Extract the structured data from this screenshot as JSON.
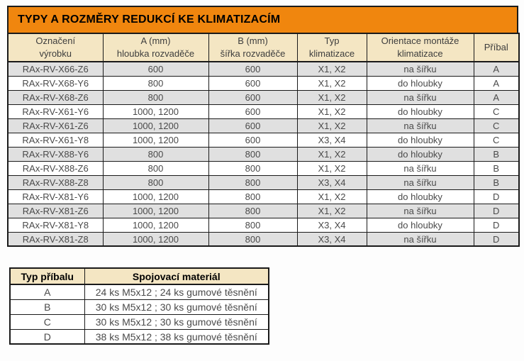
{
  "title": "TYPY A ROZMĚRY REDUKCÍ KE KLIMATIZACÍM",
  "colors": {
    "title_bg": "#F0860E",
    "title_text": "#000000",
    "header_bg": "#F4E6C3",
    "header_text": "#3D3D3D",
    "body_text": "#4A4A4A",
    "row_bg": "#FFFFFF",
    "row_alt_bg": "#E0E0E0",
    "border": "#1A1A1A"
  },
  "main_table": {
    "columns": [
      {
        "lines": [
          "Označení",
          "výrobku"
        ]
      },
      {
        "lines": [
          "A (mm)",
          "hloubka rozvaděče"
        ]
      },
      {
        "lines": [
          "B (mm)",
          "šířka rozvaděče"
        ]
      },
      {
        "lines": [
          "Typ",
          "klimatizace"
        ]
      },
      {
        "lines": [
          "Orientace montáže",
          "klimatizace"
        ]
      },
      {
        "lines": [
          "Příbal"
        ]
      }
    ],
    "rows": [
      [
        "RAx-RV-X66-Z6",
        "600",
        "600",
        "X1, X2",
        "na šířku",
        "A"
      ],
      [
        "RAx-RV-X68-Y6",
        "800",
        "600",
        "X1, X2",
        "do hloubky",
        "A"
      ],
      [
        "RAx-RV-X68-Z6",
        "800",
        "600",
        "X1, X2",
        "na šířku",
        "A"
      ],
      [
        "RAx-RV-X61-Y6",
        "1000, 1200",
        "600",
        "X1, X2",
        "do hloubky",
        "C"
      ],
      [
        "RAx-RV-X61-Z6",
        "1000, 1200",
        "600",
        "X1, X2",
        "na šířku",
        "C"
      ],
      [
        "RAx-RV-X61-Y8",
        "1000, 1200",
        "600",
        "X3, X4",
        "do hloubky",
        "C"
      ],
      [
        "RAx-RV-X88-Y6",
        "800",
        "800",
        "X1, X2",
        "do hloubky",
        "B"
      ],
      [
        "RAx-RV-X88-Z6",
        "800",
        "800",
        "X1, X2",
        "na šířku",
        "B"
      ],
      [
        "RAx-RV-X88-Z8",
        "800",
        "800",
        "X3, X4",
        "na šířku",
        "B"
      ],
      [
        "RAx-RV-X81-Y6",
        "1000, 1200",
        "800",
        "X1, X2",
        "do hloubky",
        "D"
      ],
      [
        "RAx-RV-X81-Z6",
        "1000, 1200",
        "800",
        "X1, X2",
        "na šířku",
        "D"
      ],
      [
        "RAx-RV-X81-Y8",
        "1000, 1200",
        "800",
        "X3, X4",
        "do hloubky",
        "D"
      ],
      [
        "RAx-RV-X81-Z8",
        "1000, 1200",
        "800",
        "X3, X4",
        "na šířku",
        "D"
      ]
    ]
  },
  "accessory_table": {
    "columns": [
      "Typ příbalu",
      "Spojovací materiál"
    ],
    "rows": [
      [
        "A",
        "24 ks M5x12 ; 24 ks gumové těsnění"
      ],
      [
        "B",
        "30 ks M5x12 ; 30 ks gumové těsnění"
      ],
      [
        "C",
        "30 ks M5x12 ; 30 ks gumové těsnění"
      ],
      [
        "D",
        "38 ks M5x12 ; 38 ks gumové těsnění"
      ]
    ]
  }
}
